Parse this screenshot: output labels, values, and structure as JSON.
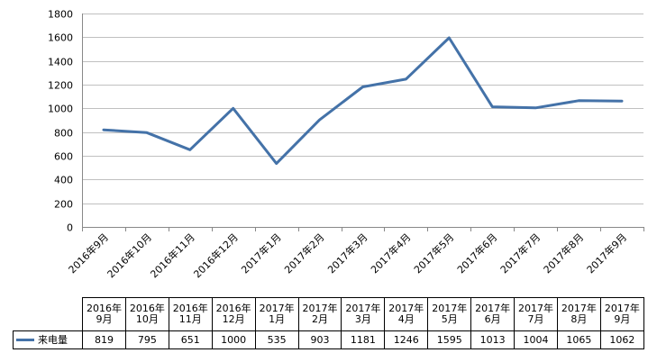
{
  "chart_data": {
    "type": "line",
    "categories": [
      "2016年9月",
      "2016年10月",
      "2016年11月",
      "2016年12月",
      "2017年1月",
      "2017年2月",
      "2017年3月",
      "2017年4月",
      "2017年5月",
      "2017年6月",
      "2017年7月",
      "2017年8月",
      "2017年9月"
    ],
    "table_headers": [
      {
        "line1": "2016年",
        "line2": "9月"
      },
      {
        "line1": "2016年",
        "line2": "10月"
      },
      {
        "line1": "2016年",
        "line2": "11月"
      },
      {
        "line1": "2016年",
        "line2": "12月"
      },
      {
        "line1": "2017年",
        "line2": "1月"
      },
      {
        "line1": "2017年",
        "line2": "2月"
      },
      {
        "line1": "2017年",
        "line2": "3月"
      },
      {
        "line1": "2017年",
        "line2": "4月"
      },
      {
        "line1": "2017年",
        "line2": "5月"
      },
      {
        "line1": "2017年",
        "line2": "6月"
      },
      {
        "line1": "2017年",
        "line2": "7月"
      },
      {
        "line1": "2017年",
        "line2": "8月"
      },
      {
        "line1": "2017年",
        "line2": "9月"
      }
    ],
    "series": [
      {
        "name": "来电量",
        "color": "#4472a8",
        "values": [
          819,
          795,
          651,
          1000,
          535,
          903,
          1181,
          1246,
          1595,
          1013,
          1004,
          1065,
          1062
        ]
      }
    ],
    "ylim": [
      0,
      1800
    ],
    "yticks": [
      "0",
      "200",
      "400",
      "600",
      "800",
      "1000",
      "1200",
      "1400",
      "1600",
      "1800"
    ],
    "grid": true,
    "legend_placement": "data-table"
  }
}
